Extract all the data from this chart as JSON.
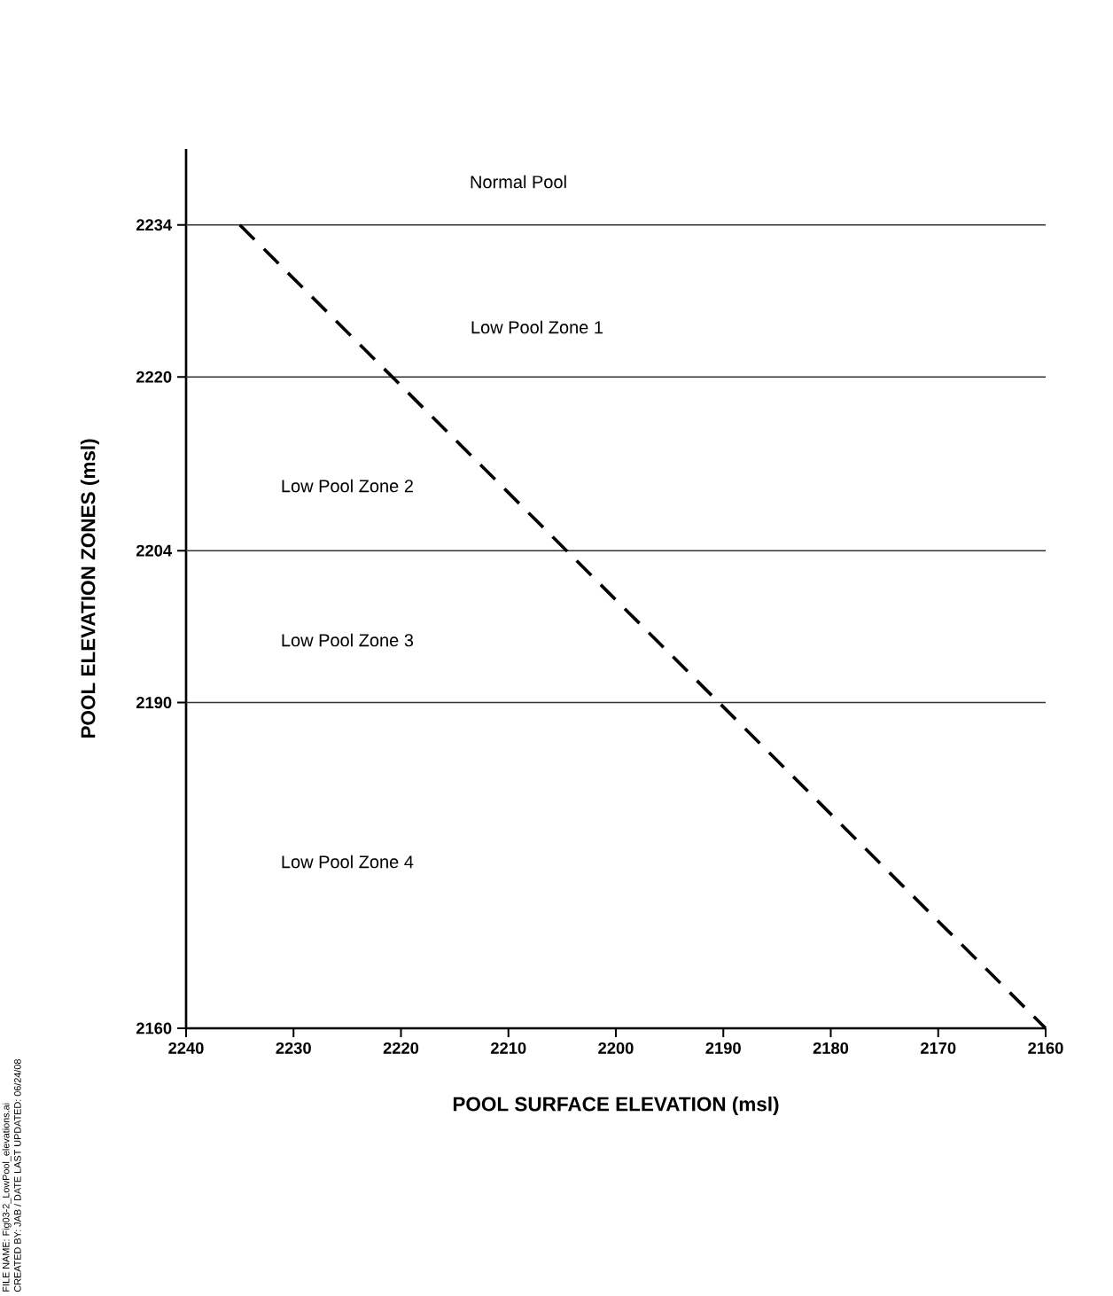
{
  "chart_data": {
    "type": "line",
    "xlabel": "POOL SURFACE ELEVATION (msl)",
    "ylabel": "POOL ELEVATION ZONES (msl)",
    "xlim": [
      2240,
      2160
    ],
    "xticks": [
      2240,
      2230,
      2220,
      2210,
      2200,
      2190,
      2180,
      2170,
      2160
    ],
    "ylim": [
      2160,
      2241
    ],
    "yticks": [
      2160,
      2190,
      2204,
      2220,
      2234
    ],
    "series": [
      {
        "color": "#000000",
        "x": [
          2235,
          2160
        ],
        "values": [
          2234,
          2160
        ],
        "line_style": "dashed",
        "marker": "none"
      }
    ],
    "ref_lines": [
      {
        "axis": "y",
        "value": 2234,
        "color": "#333333"
      },
      {
        "axis": "y",
        "value": 2220,
        "color": "#333333"
      },
      {
        "axis": "y",
        "value": 2204,
        "color": "#333333"
      },
      {
        "axis": "y",
        "value": 2190,
        "color": "#333333"
      }
    ],
    "annotations": [
      "Normal Pool",
      "Low Pool Zone 1",
      "Low Pool Zone 2",
      "Low Pool Zone 3",
      "Low Pool Zone 4",
      "FILE NAME: Fig03-2_LowPool_elevations.ai",
      "CREATED BY: JAB / DATE LAST UPDATED: 06/24/08"
    ],
    "tick_labels": true
  }
}
